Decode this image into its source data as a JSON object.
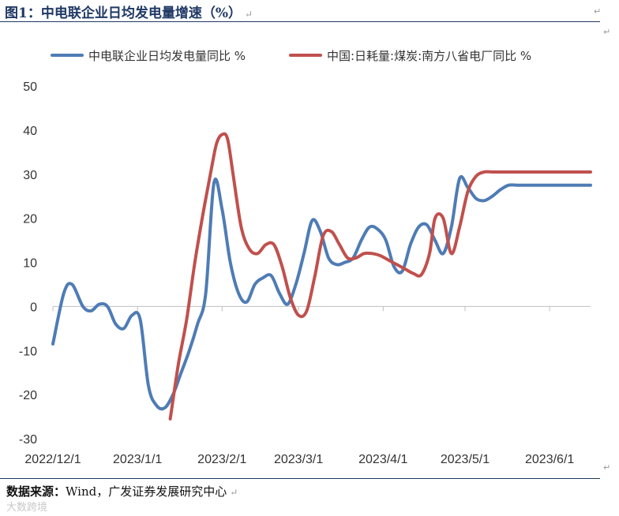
{
  "header": {
    "title": "图1：中电联企业日均发电量增速（%）",
    "mark": "↵"
  },
  "source": {
    "lead": "数据来源：",
    "text": "Wind，广发证券发展研究中心",
    "mark": "↵"
  },
  "watermark": "大数跨境",
  "corner_mark": "↵",
  "colors": {
    "blue": "#4e7cb5",
    "red": "#c0504d",
    "axis": "#bfbfbf"
  },
  "chart_data": {
    "type": "line",
    "title": "",
    "xlabel": "",
    "ylabel": "",
    "ylim": [
      -30,
      50
    ],
    "yticks": [
      -30,
      -20,
      -10,
      0,
      10,
      20,
      30,
      40,
      50
    ],
    "xlim": [
      0,
      197
    ],
    "x_tick_labels": [
      {
        "label": "2022/12/1",
        "x": 0
      },
      {
        "label": "2023/1/1",
        "x": 31
      },
      {
        "label": "2023/2/1",
        "x": 62
      },
      {
        "label": "2023/3/1",
        "x": 90
      },
      {
        "label": "2023/4/1",
        "x": 121
      },
      {
        "label": "2023/5/1",
        "x": 151
      },
      {
        "label": "2023/6/1",
        "x": 182
      }
    ],
    "legend": {
      "position": "top"
    },
    "series": [
      {
        "name": "中电联企业日均发电量同比 %",
        "color": "#4e7cb5",
        "x": [
          0,
          4,
          7,
          11,
          14,
          17,
          20,
          23,
          26,
          29,
          32,
          35,
          38,
          41,
          44,
          47,
          50,
          53,
          56,
          59,
          62,
          65,
          68,
          71,
          74,
          77,
          80,
          83,
          86,
          89,
          92,
          95,
          98,
          101,
          104,
          107,
          110,
          113,
          116,
          119,
          122,
          125,
          128,
          131,
          134,
          137,
          140,
          143,
          146,
          149,
          152,
          155,
          158,
          161,
          164,
          167,
          170,
          173,
          176,
          179,
          182,
          185,
          188,
          191,
          194,
          197
        ],
        "values": [
          -8.5,
          3,
          5,
          0,
          -1,
          0.5,
          0,
          -4,
          -5,
          -2,
          -3,
          -18,
          -22.5,
          -23,
          -20,
          -15,
          -10,
          -4,
          3,
          28,
          22,
          10,
          3,
          1,
          5,
          6.5,
          7,
          3,
          0.5,
          5,
          12,
          19.5,
          17,
          11,
          9.5,
          10,
          11,
          15,
          18,
          17.5,
          15,
          9,
          8,
          14,
          18,
          18.5,
          15,
          12,
          18,
          29,
          27,
          24.5,
          24,
          25,
          26.5,
          27.5,
          27.5,
          27.5,
          27.5,
          27.5,
          27.5,
          27.5,
          27.5,
          27.5,
          27.5,
          27.5
        ],
        "x_end": 197
      },
      {
        "name": "中国:日耗量:煤炭:南方八省电厂同比 %",
        "color": "#c0504d",
        "x": [
          43,
          46,
          49,
          52,
          55,
          58,
          60,
          62,
          64,
          66,
          69,
          72,
          75,
          78,
          81,
          84,
          87,
          90,
          93,
          96,
          99,
          102,
          105,
          108,
          111,
          114,
          117,
          120,
          123,
          126,
          129,
          132,
          135,
          138,
          140,
          143,
          146,
          149,
          152,
          155,
          158,
          161,
          164,
          167,
          170,
          173,
          176,
          179,
          182,
          185,
          188,
          191,
          194,
          197
        ],
        "values": [
          -25.5,
          -13,
          -3,
          10,
          21,
          31,
          37,
          39,
          38,
          30,
          18,
          13,
          12,
          14,
          14,
          9,
          2,
          -2,
          -1,
          7,
          16,
          17,
          14,
          11,
          11,
          12,
          12,
          11.5,
          10.5,
          9.5,
          8.5,
          7.5,
          7.2,
          12,
          20,
          20,
          12,
          18,
          26,
          29.5,
          30.5,
          30.5,
          30.5,
          30.5,
          30.5,
          30.5,
          30.5,
          30.5,
          30.5,
          30.5,
          30.5,
          30.5,
          30.5,
          30.5
        ]
      }
    ]
  }
}
